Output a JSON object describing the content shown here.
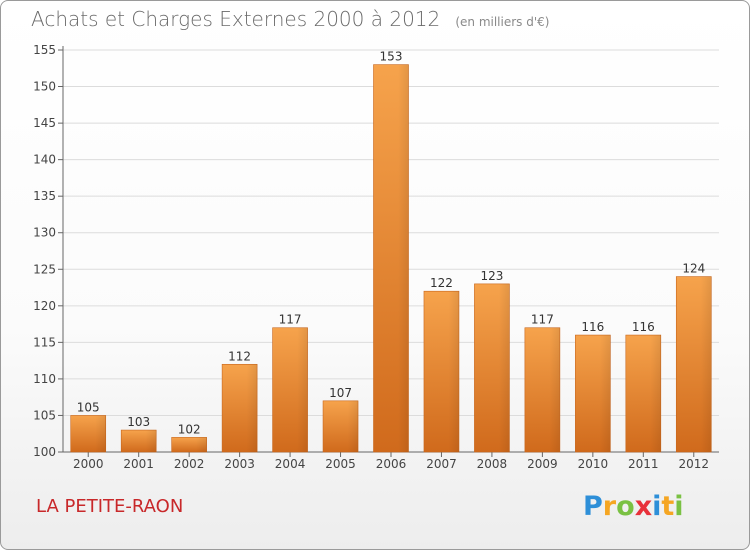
{
  "chart_data": {
    "type": "bar",
    "title": "Achats et Charges Externes 2000 à 2012",
    "unit_note": "(en milliers d'€)",
    "categories": [
      "2000",
      "2001",
      "2002",
      "2003",
      "2004",
      "2005",
      "2006",
      "2007",
      "2008",
      "2009",
      "2010",
      "2011",
      "2012"
    ],
    "values": [
      105,
      103,
      102,
      112,
      117,
      107,
      153,
      122,
      123,
      117,
      116,
      116,
      124
    ],
    "ylim": [
      100,
      155
    ],
    "yticks": [
      100,
      105,
      110,
      115,
      120,
      125,
      130,
      135,
      140,
      145,
      150,
      155
    ],
    "grid": true,
    "legend": "none",
    "bar_color": "#f0963a",
    "bar_color_dark": "#d2691e"
  },
  "location_label": "LA PETITE-RAON",
  "logo": {
    "letters": [
      "P",
      "r",
      "o",
      "x",
      "i",
      "t",
      "i"
    ],
    "colors": [
      "#2e8fd8",
      "#f5a623",
      "#7ac143",
      "#e8313a",
      "#2e8fd8",
      "#f5a623",
      "#7ac143"
    ]
  }
}
